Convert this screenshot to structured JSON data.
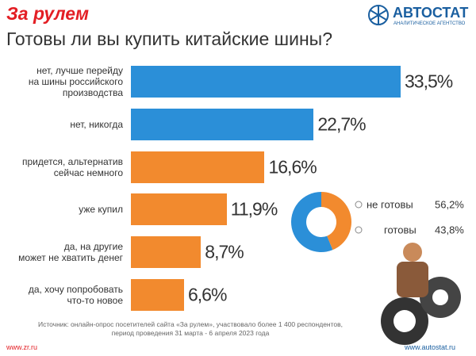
{
  "header": {
    "logo_left": "За рулем",
    "logo_right": "АВТОСТАТ",
    "logo_right_sub": "АНАЛИТИЧЕСКОЕ АГЕНТСТВО"
  },
  "chart_data": [
    {
      "type": "bar",
      "title": "Готовы ли вы купить китайские шины?",
      "categories": [
        "нет, лучше перейду\nна шины российского\nпроизводства",
        "нет, никогда",
        "придется, альтернатив\nсейчас немного",
        "уже купил",
        "да, на другие\nможет не хватить денег",
        "да, хочу попробовать\nчто-то новое"
      ],
      "values": [
        33.5,
        22.7,
        16.6,
        11.9,
        8.7,
        6.6
      ],
      "value_labels": [
        "33,5%",
        "22,7%",
        "16,6%",
        "11,9%",
        "8,7%",
        "6,6%"
      ],
      "colors": [
        "#2b8fd8",
        "#2b8fd8",
        "#f28a2e",
        "#f28a2e",
        "#f28a2e",
        "#f28a2e"
      ]
    },
    {
      "type": "pie",
      "categories": [
        "не готовы",
        "готовы"
      ],
      "values": [
        56.2,
        43.8
      ],
      "value_labels": [
        "56,2%",
        "43,8%"
      ],
      "colors": [
        "#2b8fd8",
        "#f28a2e"
      ]
    }
  ],
  "footer": {
    "source": "Источник: онлайн-опрос посетителей сайта «За рулем», участвовало более 1 400 респондентов,\nпериод проведения 31 марта - 6 апреля 2023 года",
    "url_left": "www.zr.ru",
    "url_right": "www.autostat.ru"
  }
}
